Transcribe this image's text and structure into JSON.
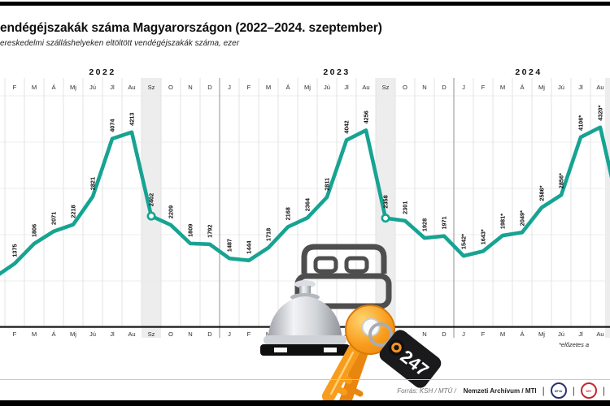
{
  "header": {
    "title": "endégéjszakák száma Magyarországon (2022–2024. szeptember)",
    "subtitle": "ereskedelmi szálláshelyeken eltöltött vendégéjszakák száma, ezer"
  },
  "chart_data": {
    "type": "line",
    "title": "endégéjszakák száma Magyarországon (2022–2024. szeptember)",
    "unit_note": "ezer",
    "xlabel": "",
    "ylabel": "",
    "month_labels": [
      "J",
      "F",
      "M",
      "Á",
      "Mj",
      "Jú",
      "Jl",
      "Au",
      "Sz",
      "O",
      "N",
      "D"
    ],
    "years": [
      {
        "year": "2022",
        "values": [
          null,
          1375,
          1806,
          2071,
          2218,
          2821,
          4074,
          4213,
          2402,
          2209,
          1809,
          1792
        ]
      },
      {
        "year": "2023",
        "values": [
          1487,
          1444,
          1718,
          2168,
          2364,
          2811,
          4042,
          4256,
          2358,
          2301,
          1928,
          1971
        ]
      },
      {
        "year": "2024",
        "values": [
          1542,
          1643,
          1981,
          2049,
          2586,
          2856,
          4106,
          4320
        ],
        "preliminary": true
      }
    ],
    "preliminary_suffix": "*",
    "highlight_month": "Sz",
    "open_markers": [
      {
        "year": "2022",
        "month": "Sz"
      },
      {
        "year": "2023",
        "month": "Sz"
      }
    ],
    "line_color": "#17a392",
    "ylim": [
      0,
      5400
    ],
    "gridlines_y": [
      1000,
      2000,
      3000,
      4000,
      5000
    ],
    "grid": "on",
    "legend_position": "none"
  },
  "footnote": "*előzetes a",
  "footer": {
    "source_regular": "Forrás: KSH / MTÜ /",
    "source_bold": "Nemzeti Archívum / MTI",
    "separator": "|",
    "logos": [
      {
        "label": "MTVA",
        "color": "#2b3170"
      },
      {
        "label": "MTI",
        "color": "#c4282e"
      }
    ]
  },
  "illustration": {
    "tag_label": "247"
  }
}
